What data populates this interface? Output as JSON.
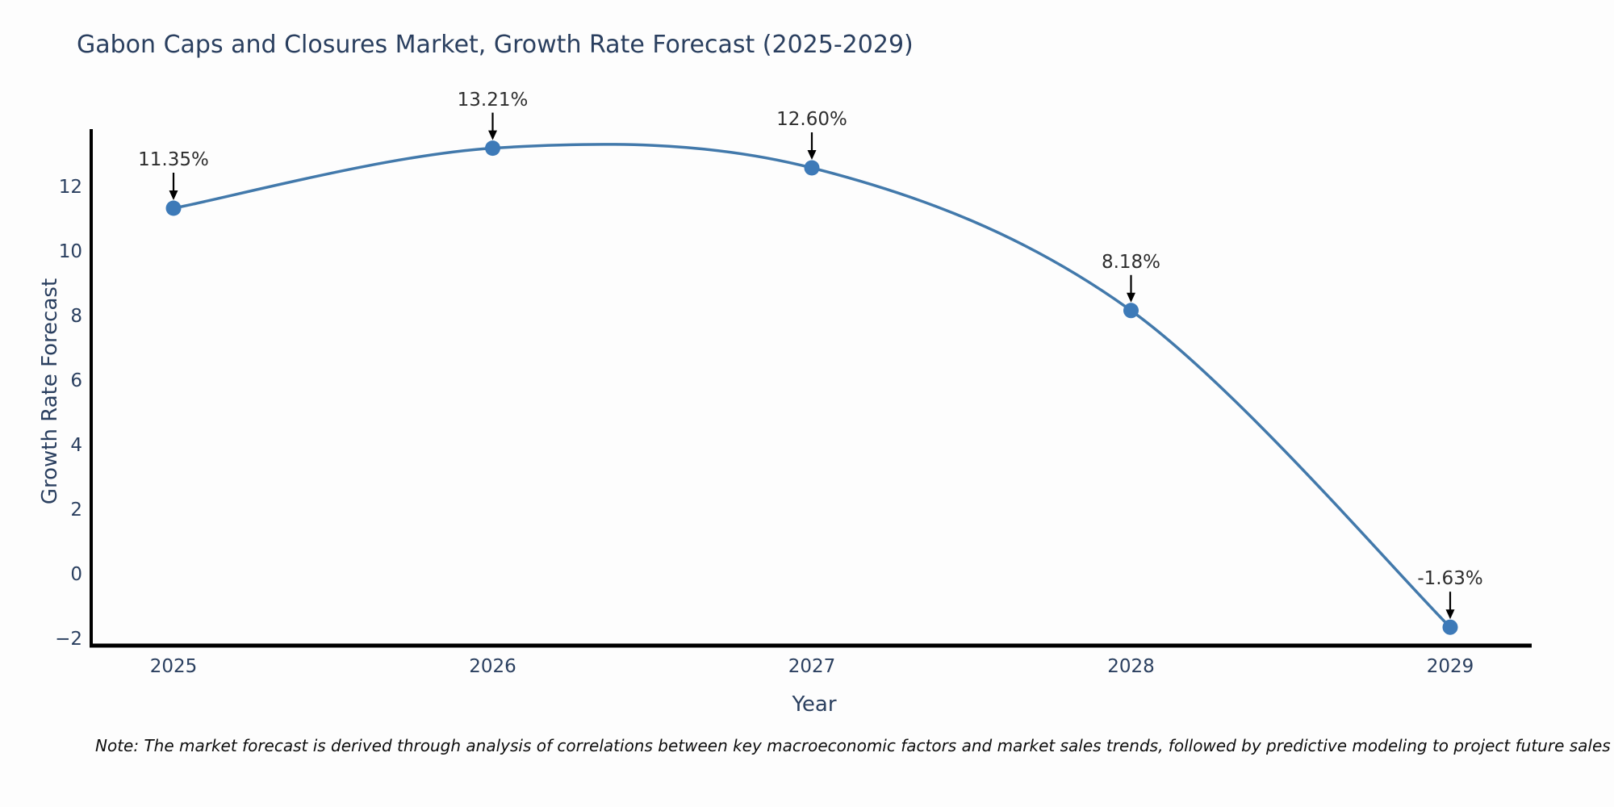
{
  "chart": {
    "title": "Gabon Caps and Closures Market, Growth Rate Forecast (2025-2029)",
    "xlabel": "Year",
    "ylabel": "Growth Rate Forecast",
    "note": "Note: The market forecast is derived through analysis of correlations between key macroeconomic factors and market sales trends, followed by predictive modeling to project future sales"
  },
  "chart_data": {
    "type": "line",
    "title": "Gabon Caps and Closures Market, Growth Rate Forecast (2025-2029)",
    "xlabel": "Year",
    "ylabel": "Growth Rate Forecast",
    "x": [
      2025,
      2026,
      2027,
      2028,
      2029
    ],
    "x_tick_labels": [
      "2025",
      "2026",
      "2027",
      "2028",
      "2029"
    ],
    "values": [
      11.35,
      13.21,
      12.6,
      8.18,
      -1.63
    ],
    "point_labels": [
      "11.35%",
      "13.21%",
      "12.60%",
      "8.18%",
      "-1.63%"
    ],
    "y_tick_values": [
      -2,
      0,
      2,
      4,
      6,
      8,
      10,
      12
    ],
    "y_tick_labels": [
      "−2",
      "0",
      "2",
      "4",
      "6",
      "8",
      "10",
      "12"
    ],
    "ylim": [
      -2.3,
      14.0
    ],
    "grid": false,
    "legend": false,
    "smooth_spline": true,
    "annotations_have_arrows": true,
    "line_color": "#4279ab",
    "marker_color": "#3d7ab8",
    "axis_color": "#000000",
    "tick_text_color": "#2a3f5f",
    "annotation_text_color": "#2d2d2d",
    "arrow_color": "#000000",
    "note_text_color": "#0d0d0d",
    "background_color": "#fdfdfd"
  }
}
